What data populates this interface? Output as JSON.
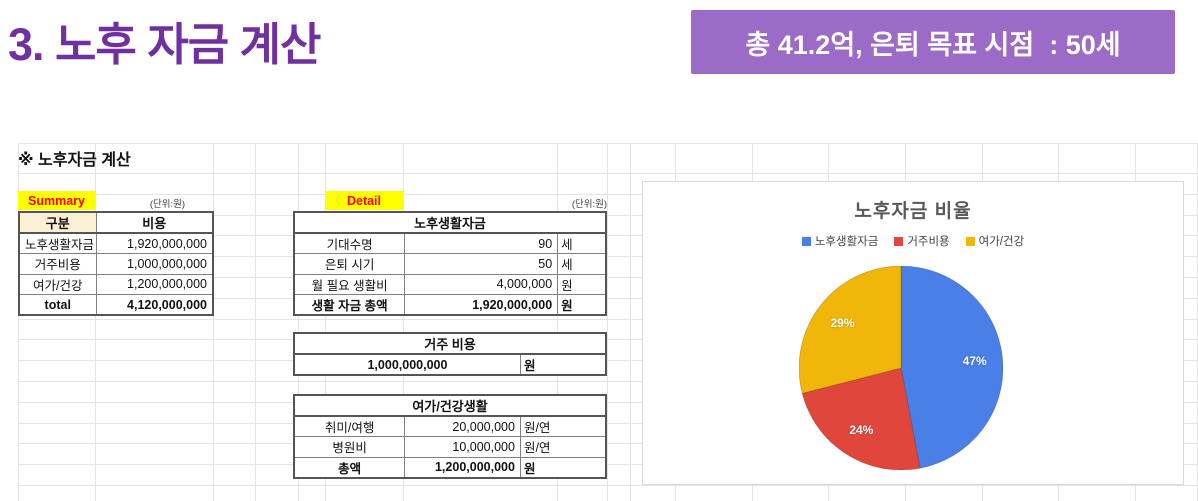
{
  "page": {
    "title": "3. 노후 자금 계산",
    "badge": "총 41.2억, 은퇴 목표 시점  : 50세",
    "section_header": "※ 노후자금 계산"
  },
  "colors": {
    "title_purple": "#7030A0",
    "badge_bg": "#9b6bc7",
    "tag_bg": "#ffff00",
    "tag_text": "#ff0000",
    "header_cell_fill": "#fbf0d3"
  },
  "summary": {
    "tag": "Summary",
    "unit_note": "(단위:원)",
    "headers": {
      "col1": "구분",
      "col2": "비용"
    },
    "rows": [
      {
        "label": "노후생활자금",
        "value": "1,920,000,000"
      },
      {
        "label": "거주비용",
        "value": "1,000,000,000"
      },
      {
        "label": "여가/건강",
        "value": "1,200,000,000"
      }
    ],
    "total": {
      "label": "total",
      "value": "4,120,000,000"
    }
  },
  "detail": {
    "tag": "Detail",
    "unit_note": "(단위:원)",
    "living": {
      "title": "노후생활자금",
      "rows": [
        {
          "label": "기대수명",
          "value": "90",
          "unit": "세"
        },
        {
          "label": "은퇴 시기",
          "value": "50",
          "unit": "세"
        },
        {
          "label": "월 필요 생활비",
          "value": "4,000,000",
          "unit": "원"
        }
      ],
      "total": {
        "label": "생활 자금 총액",
        "value": "1,920,000,000",
        "unit": "원"
      }
    },
    "housing": {
      "title": "거주 비용",
      "value": "1,000,000,000",
      "unit": "원"
    },
    "leisure": {
      "title": "여가/건강생활",
      "rows": [
        {
          "label": "취미/여행",
          "value": "20,000,000",
          "unit": "원/연"
        },
        {
          "label": "병원비",
          "value": "10,000,000",
          "unit": "원/연"
        }
      ],
      "total": {
        "label": "총액",
        "value": "1,200,000,000",
        "unit": "원"
      }
    }
  },
  "chart_data": {
    "type": "pie",
    "title": "노후자금 비율",
    "labels": [
      "노후생활자금",
      "거주비용",
      "여가/건강"
    ],
    "values": [
      47,
      24,
      29
    ],
    "slice_labels": [
      "47%",
      "24%",
      "29%"
    ],
    "colors": [
      "#4a7fe7",
      "#e0463c",
      "#f0b60a"
    ],
    "legend_position": "top",
    "start_angle_deg": 0
  }
}
